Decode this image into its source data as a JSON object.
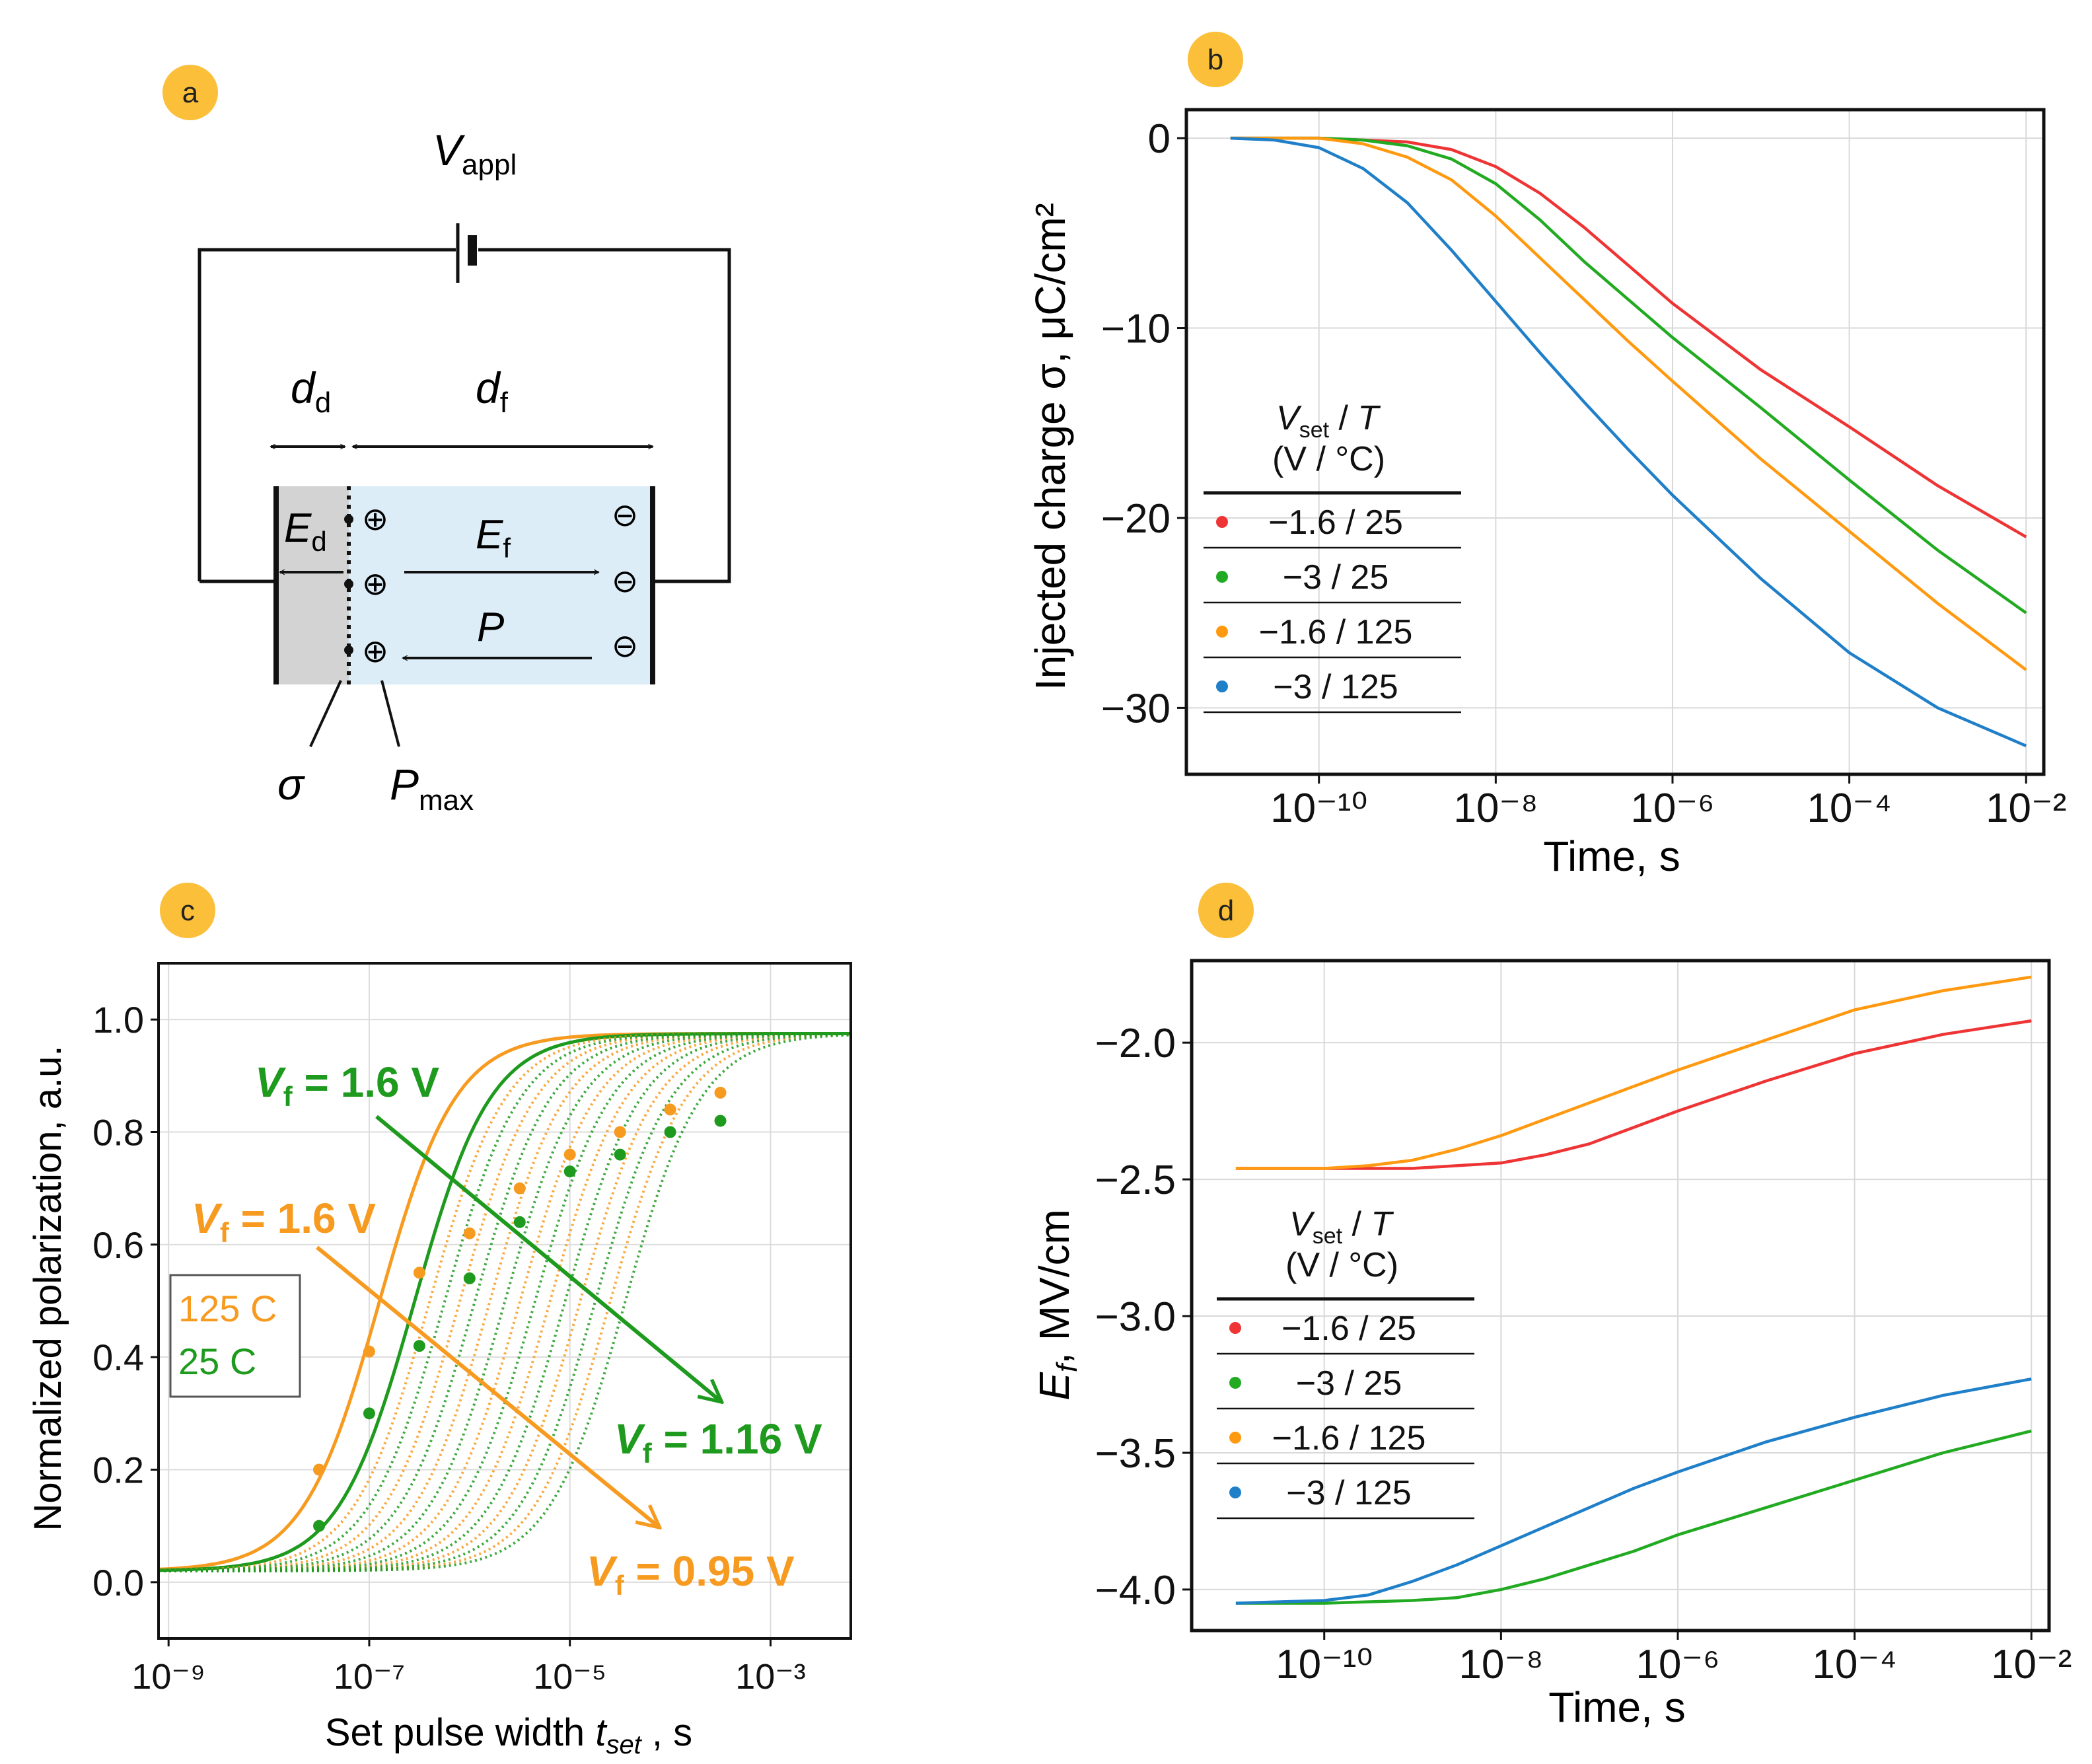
{
  "panels": {
    "a": {
      "badge": "a",
      "V_main": "V",
      "V_sub": "appl",
      "dd_main": "d",
      "dd_sub": "d",
      "df_main": "d",
      "df_sub": "f",
      "Ed_main": "E",
      "Ed_sub": "d",
      "Ef_main": "E",
      "Ef_sub": "f",
      "P_label": "P",
      "plus": "⊕",
      "minus": "⊖",
      "sigma_label": "σ",
      "Pmax_main": "P",
      "Pmax_sub": "max"
    },
    "b": {
      "badge": "b"
    },
    "c": {
      "badge": "c"
    },
    "d": {
      "badge": "d"
    }
  },
  "colors": {
    "red": "#ee3434",
    "green": "#22aa22",
    "orange": "#ff9910",
    "blue": "#1f7fc8",
    "badge": "#fbbf3a",
    "cell_fill": "#dcedf8",
    "dead_fill": "#d3d3d3",
    "c_green": "#1e9a1e",
    "c_orange": "#f79a20"
  },
  "chart_data": [
    {
      "id": "b",
      "type": "line",
      "xlabel": "Time, s",
      "ylabel": "Injected charge σ, μC/cm²",
      "xscale": "log",
      "xlim": [
        -11.5,
        -1.8
      ],
      "ylim": [
        -33.5,
        1.5
      ],
      "xticks": [
        -10,
        -8,
        -6,
        -4,
        -2
      ],
      "xtick_labels": [
        "10⁻¹⁰",
        "10⁻⁸",
        "10⁻⁶",
        "10⁻⁴",
        "10⁻²"
      ],
      "yticks": [
        0,
        -10,
        -20,
        -30
      ],
      "ytick_labels": [
        "0",
        "−10",
        "−20",
        "−30"
      ],
      "grid": true,
      "legend": {
        "position": "center-left",
        "header_line1": "Vset / T",
        "header_line2": "(V   / °C)",
        "entries": [
          "−1.6 / 25",
          "−3 / 25",
          "−1.6 / 125",
          "−3 / 125"
        ]
      },
      "series": [
        {
          "name": "−1.6 / 25",
          "color": "#ee3434",
          "x": [
            -11,
            -10,
            -9,
            -8.5,
            -8,
            -7.5,
            -7,
            -6.5,
            -6,
            -5,
            -4,
            -3,
            -2
          ],
          "y": [
            0,
            0,
            -0.2,
            -0.6,
            -1.5,
            -2.9,
            -4.7,
            -6.7,
            -8.7,
            -12.2,
            -15.2,
            -18.3,
            -21
          ]
        },
        {
          "name": "−3 / 25",
          "color": "#22aa22",
          "x": [
            -11,
            -10,
            -9.5,
            -9,
            -8.5,
            -8,
            -7.5,
            -7,
            -6.5,
            -6,
            -5,
            -4,
            -3,
            -2
          ],
          "y": [
            0,
            0,
            -0.1,
            -0.4,
            -1.1,
            -2.4,
            -4.3,
            -6.5,
            -8.5,
            -10.5,
            -14.2,
            -18,
            -21.7,
            -25
          ]
        },
        {
          "name": "−1.6 / 125",
          "color": "#ff9910",
          "x": [
            -11,
            -10,
            -9.5,
            -9,
            -8.5,
            -8,
            -7.5,
            -7,
            -6.5,
            -6,
            -5,
            -4,
            -3,
            -2
          ],
          "y": [
            0,
            0,
            -0.3,
            -1,
            -2.2,
            -4.1,
            -6.3,
            -8.5,
            -10.7,
            -12.8,
            -16.9,
            -20.7,
            -24.5,
            -28
          ]
        },
        {
          "name": "−3 / 125",
          "color": "#1f7fc8",
          "x": [
            -11,
            -10.5,
            -10,
            -9.5,
            -9,
            -8.5,
            -8,
            -7.5,
            -7,
            -6.5,
            -6,
            -5,
            -4,
            -3,
            -2
          ],
          "y": [
            0,
            -0.1,
            -0.5,
            -1.6,
            -3.4,
            -5.9,
            -8.6,
            -11.3,
            -13.9,
            -16.4,
            -18.8,
            -23.2,
            -27.1,
            -30,
            -32
          ]
        }
      ]
    },
    {
      "id": "c",
      "type": "line",
      "xlabel_main": "Set pulse width ",
      "xlabel_var": "t",
      "xlabel_sub": "set",
      "xlabel_tail": " , s",
      "ylabel": "Normalized polarization, a.u.",
      "xscale": "log",
      "xlim": [
        -9.1,
        -2.2
      ],
      "ylim": [
        -0.1,
        1.1
      ],
      "xticks": [
        -9,
        -7,
        -5,
        -3
      ],
      "xtick_labels": [
        "10⁻⁹",
        "10⁻⁷",
        "10⁻⁵",
        "10⁻³"
      ],
      "yticks": [
        0,
        0.2,
        0.4,
        0.6,
        0.8,
        1.0
      ],
      "ytick_labels": [
        "0.0",
        "0.2",
        "0.4",
        "0.6",
        "0.8",
        "1.0"
      ],
      "grid": true,
      "legend_box": {
        "line1": "125 C",
        "line2": "25 C"
      },
      "annotations": [
        {
          "text_main": "V",
          "text_sub": "f",
          "text_tail": "  = 1.6 V",
          "color": "#1e9a1e"
        },
        {
          "text_main": "V",
          "text_sub": "f",
          "text_tail": "  = 1.6 V",
          "color": "#f79a20"
        },
        {
          "text_main": "V",
          "text_sub": "f",
          "text_tail": "  = 1.16 V",
          "color": "#1e9a1e"
        },
        {
          "text_main": "V",
          "text_sub": "f",
          "text_tail": "  = 0.95 V",
          "color": "#f79a20"
        }
      ],
      "series": [
        {
          "name": "125 C, Vf = 1.6 V (solid)",
          "color": "#f79a20",
          "style": "solid",
          "log_t_half": -6.9,
          "log_width": 0.38
        },
        {
          "name": "25 C, Vf = 1.6 V (solid)",
          "color": "#1e9a1e",
          "style": "solid",
          "log_t_half": -6.55,
          "log_width": 0.38
        },
        {
          "name": "125 C dotted family",
          "color": "#f79a20",
          "style": "dotted",
          "log_t_half": [
            -6.4,
            -6.1,
            -5.8,
            -5.5,
            -5.2,
            -4.9,
            -4.6
          ]
        },
        {
          "name": "25 C dotted family",
          "color": "#1e9a1e",
          "style": "dotted",
          "log_t_half": [
            -6.25,
            -5.95,
            -5.65,
            -5.35,
            -5.05,
            -4.75,
            -4.45
          ]
        },
        {
          "name": "125 C points",
          "color": "#f79a20",
          "type": "scatter",
          "x": [
            -7.5,
            -7,
            -6.5,
            -6,
            -5.5,
            -5,
            -4.5,
            -4,
            -3.5
          ],
          "y": [
            0.2,
            0.41,
            0.55,
            0.62,
            0.7,
            0.76,
            0.8,
            0.84,
            0.87
          ]
        },
        {
          "name": "25 C points",
          "color": "#1e9a1e",
          "type": "scatter",
          "x": [
            -7.5,
            -7,
            -6.5,
            -6,
            -5.5,
            -5,
            -4.5,
            -4,
            -3.5
          ],
          "y": [
            0.1,
            0.3,
            0.42,
            0.54,
            0.64,
            0.73,
            0.76,
            0.8,
            0.82
          ]
        }
      ]
    },
    {
      "id": "d",
      "type": "line",
      "xlabel": "Time, s",
      "ylabel_var": "E",
      "ylabel_sub": "f",
      "ylabel_tail": ",  MV/cm",
      "xscale": "log",
      "xlim": [
        -11.5,
        -1.8
      ],
      "ylim": [
        -4.15,
        -1.7
      ],
      "xticks": [
        -10,
        -8,
        -6,
        -4,
        -2
      ],
      "xtick_labels": [
        "10⁻¹⁰",
        "10⁻⁸",
        "10⁻⁶",
        "10⁻⁴",
        "10⁻²"
      ],
      "yticks": [
        -2.0,
        -2.5,
        -3.0,
        -3.5,
        -4.0
      ],
      "ytick_labels": [
        "−2.0",
        "−2.5",
        "−3.0",
        "−3.5",
        "−4.0"
      ],
      "grid": true,
      "legend": {
        "position": "center-left",
        "header_line1": "Vset / T",
        "header_line2": "(V   / °C)",
        "entries": [
          "−1.6 / 25",
          "−3 / 25",
          "−1.6 / 125",
          "−3 / 125"
        ]
      },
      "series": [
        {
          "name": "−1.6 / 25",
          "color": "#ee3434",
          "x": [
            -11,
            -10,
            -9,
            -8.5,
            -8,
            -7.5,
            -7,
            -6.5,
            -6,
            -5,
            -4,
            -3,
            -2
          ],
          "y": [
            -2.46,
            -2.46,
            -2.46,
            -2.45,
            -2.44,
            -2.41,
            -2.37,
            -2.31,
            -2.25,
            -2.14,
            -2.04,
            -1.97,
            -1.92
          ]
        },
        {
          "name": "−3 / 25",
          "color": "#22aa22",
          "x": [
            -11,
            -10,
            -9,
            -8.5,
            -8,
            -7.5,
            -7,
            -6.5,
            -6,
            -5,
            -4,
            -3,
            -2
          ],
          "y": [
            -4.05,
            -4.05,
            -4.04,
            -4.03,
            -4.0,
            -3.96,
            -3.91,
            -3.86,
            -3.8,
            -3.7,
            -3.6,
            -3.5,
            -3.42
          ]
        },
        {
          "name": "−1.6 / 125",
          "color": "#ff9910",
          "x": [
            -11,
            -10,
            -9.5,
            -9,
            -8.5,
            -8,
            -7.5,
            -7,
            -6.5,
            -6,
            -5,
            -4,
            -3,
            -2
          ],
          "y": [
            -2.46,
            -2.46,
            -2.45,
            -2.43,
            -2.39,
            -2.34,
            -2.28,
            -2.22,
            -2.16,
            -2.1,
            -1.99,
            -1.88,
            -1.81,
            -1.76
          ]
        },
        {
          "name": "−3 / 125",
          "color": "#1f7fc8",
          "x": [
            -11,
            -10,
            -9.5,
            -9,
            -8.5,
            -8,
            -7.5,
            -7,
            -6.5,
            -6,
            -5,
            -4,
            -3,
            -2
          ],
          "y": [
            -4.05,
            -4.04,
            -4.02,
            -3.97,
            -3.91,
            -3.84,
            -3.77,
            -3.7,
            -3.63,
            -3.57,
            -3.46,
            -3.37,
            -3.29,
            -3.23
          ]
        }
      ]
    }
  ]
}
